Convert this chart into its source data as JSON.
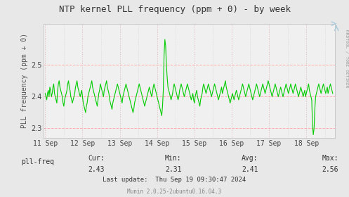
{
  "title": "NTP kernel PLL frequency (ppm + 0) - by week",
  "ylabel": "PLL frequency (ppm + 0)",
  "right_label": "RRDTOOL / TOBI OETIKER",
  "footer": "Munin 2.0.25-2ubuntu0.16.04.3",
  "last_update": "Last update:  Thu Sep 19 09:30:47 2024",
  "cur": "2.43",
  "min": "2.31",
  "avg": "2.41",
  "max": "2.56",
  "legend_label": "pll-freq",
  "legend_color": "#00cc00",
  "line_color": "#00cc00",
  "bg_color": "#e8e8e8",
  "plot_bg_color": "#f0f0f0",
  "grid_color_h": "#ffaaaa",
  "grid_color_v": "#ddbbbb",
  "grid_color_minor": "#cccccc",
  "ylim": [
    2.27,
    2.63
  ],
  "yticks": [
    2.3,
    2.4,
    2.5
  ],
  "x_labels": [
    "11 Sep",
    "12 Sep",
    "13 Sep",
    "14 Sep",
    "15 Sep",
    "16 Sep",
    "17 Sep",
    "18 Sep"
  ],
  "x_tick_positions": [
    0,
    48,
    96,
    144,
    192,
    240,
    288,
    336
  ],
  "data_points": [
    2.41,
    2.4,
    2.39,
    2.41,
    2.42,
    2.4,
    2.43,
    2.42,
    2.4,
    2.41,
    2.43,
    2.44,
    2.41,
    2.4,
    2.39,
    2.38,
    2.42,
    2.44,
    2.45,
    2.43,
    2.42,
    2.41,
    2.4,
    2.38,
    2.37,
    2.39,
    2.4,
    2.41,
    2.42,
    2.44,
    2.45,
    2.43,
    2.42,
    2.4,
    2.39,
    2.38,
    2.39,
    2.4,
    2.41,
    2.43,
    2.44,
    2.45,
    2.43,
    2.42,
    2.41,
    2.4,
    2.41,
    2.42,
    2.4,
    2.38,
    2.37,
    2.36,
    2.35,
    2.37,
    2.38,
    2.4,
    2.41,
    2.42,
    2.43,
    2.44,
    2.45,
    2.43,
    2.42,
    2.41,
    2.4,
    2.39,
    2.38,
    2.37,
    2.39,
    2.41,
    2.42,
    2.44,
    2.43,
    2.42,
    2.41,
    2.4,
    2.42,
    2.43,
    2.44,
    2.45,
    2.43,
    2.42,
    2.41,
    2.39,
    2.38,
    2.37,
    2.36,
    2.38,
    2.39,
    2.4,
    2.41,
    2.42,
    2.43,
    2.44,
    2.43,
    2.42,
    2.41,
    2.4,
    2.39,
    2.38,
    2.4,
    2.41,
    2.42,
    2.43,
    2.44,
    2.43,
    2.42,
    2.41,
    2.4,
    2.39,
    2.38,
    2.37,
    2.36,
    2.35,
    2.36,
    2.38,
    2.39,
    2.4,
    2.41,
    2.42,
    2.43,
    2.44,
    2.43,
    2.42,
    2.41,
    2.4,
    2.39,
    2.38,
    2.37,
    2.38,
    2.39,
    2.4,
    2.41,
    2.42,
    2.43,
    2.42,
    2.41,
    2.4,
    2.41,
    2.43,
    2.44,
    2.43,
    2.42,
    2.41,
    2.4,
    2.39,
    2.38,
    2.37,
    2.36,
    2.35,
    2.34,
    2.37,
    2.42,
    2.53,
    2.58,
    2.56,
    2.5,
    2.46,
    2.43,
    2.42,
    2.41,
    2.4,
    2.39,
    2.4,
    2.41,
    2.43,
    2.44,
    2.43,
    2.42,
    2.41,
    2.4,
    2.39,
    2.4,
    2.42,
    2.43,
    2.44,
    2.43,
    2.42,
    2.41,
    2.4,
    2.41,
    2.42,
    2.43,
    2.44,
    2.43,
    2.42,
    2.41,
    2.4,
    2.39,
    2.4,
    2.41,
    2.39,
    2.38,
    2.4,
    2.41,
    2.42,
    2.4,
    2.39,
    2.38,
    2.37,
    2.39,
    2.4,
    2.41,
    2.43,
    2.44,
    2.43,
    2.42,
    2.41,
    2.42,
    2.43,
    2.44,
    2.43,
    2.42,
    2.41,
    2.4,
    2.41,
    2.42,
    2.43,
    2.44,
    2.43,
    2.42,
    2.41,
    2.4,
    2.39,
    2.4,
    2.41,
    2.42,
    2.43,
    2.41,
    2.42,
    2.43,
    2.44,
    2.45,
    2.43,
    2.42,
    2.41,
    2.4,
    2.39,
    2.38,
    2.39,
    2.4,
    2.41,
    2.4,
    2.39,
    2.4,
    2.41,
    2.42,
    2.41,
    2.4,
    2.39,
    2.4,
    2.41,
    2.42,
    2.43,
    2.44,
    2.43,
    2.42,
    2.41,
    2.4,
    2.41,
    2.42,
    2.43,
    2.44,
    2.43,
    2.42,
    2.41,
    2.4,
    2.39,
    2.4,
    2.41,
    2.42,
    2.43,
    2.44,
    2.43,
    2.42,
    2.41,
    2.4,
    2.41,
    2.42,
    2.43,
    2.44,
    2.43,
    2.42,
    2.41,
    2.42,
    2.43,
    2.44,
    2.45,
    2.44,
    2.43,
    2.42,
    2.41,
    2.4,
    2.41,
    2.42,
    2.43,
    2.44,
    2.43,
    2.42,
    2.41,
    2.4,
    2.41,
    2.42,
    2.43,
    2.42,
    2.41,
    2.4,
    2.41,
    2.42,
    2.43,
    2.44,
    2.43,
    2.42,
    2.41,
    2.42,
    2.43,
    2.44,
    2.43,
    2.42,
    2.41,
    2.42,
    2.43,
    2.44,
    2.43,
    2.42,
    2.41,
    2.4,
    2.41,
    2.42,
    2.43,
    2.42,
    2.41,
    2.4,
    2.41,
    2.42,
    2.4,
    2.41,
    2.42,
    2.43,
    2.44,
    2.42,
    2.41,
    2.4,
    2.39,
    2.31,
    2.28,
    2.3,
    2.36,
    2.4,
    2.41,
    2.42,
    2.43,
    2.44,
    2.43,
    2.42,
    2.41,
    2.42,
    2.43,
    2.44,
    2.43,
    2.42,
    2.41,
    2.42,
    2.43,
    2.41,
    2.42,
    2.43,
    2.44,
    2.43,
    2.42,
    2.41
  ]
}
